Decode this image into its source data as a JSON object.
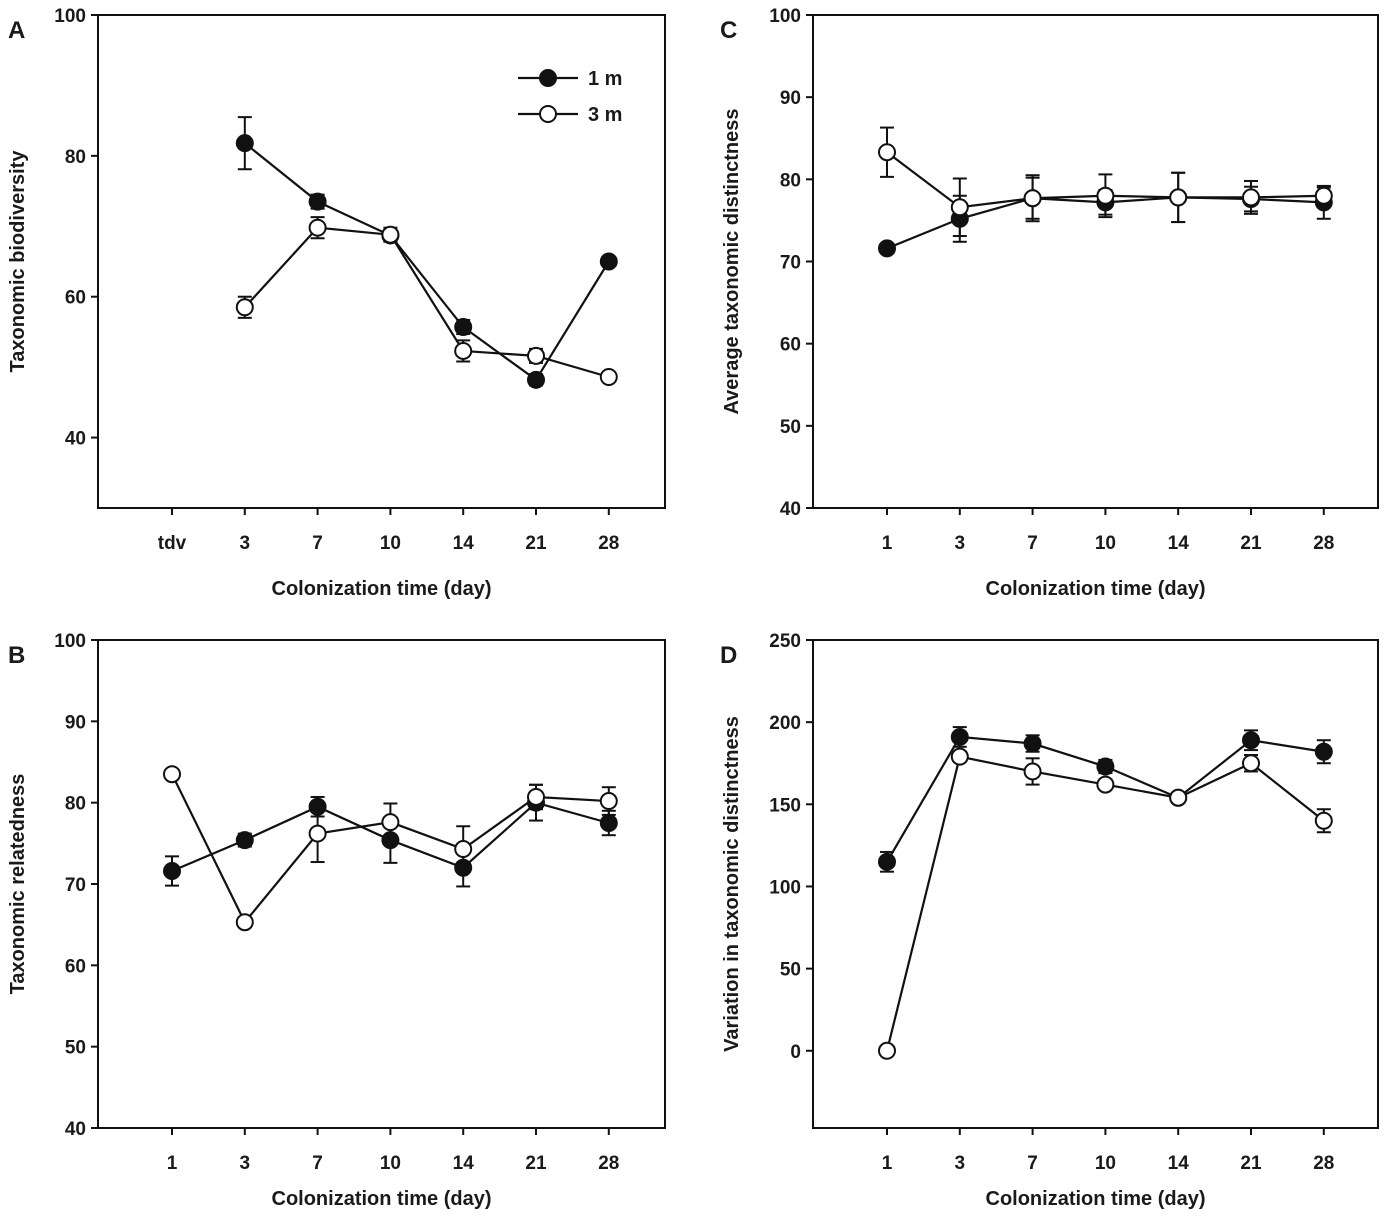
{
  "chart_data": [
    {
      "panel": "A",
      "type": "line",
      "xlabel": "Colonization time (day)",
      "ylabel": "Taxonomic biodiversity",
      "categories": [
        "tdv",
        "3",
        "7",
        "10",
        "14",
        "21",
        "28"
      ],
      "ylim": [
        30,
        100
      ],
      "yticks": [
        40,
        60,
        80,
        100
      ],
      "legend": {
        "placement": "top-right",
        "entries": [
          "1 m",
          "3 m"
        ]
      },
      "series": [
        {
          "name": "1 m",
          "marker": "filled-circle",
          "values": [
            null,
            81.8,
            73.5,
            68.7,
            55.7,
            48.2,
            65.0
          ],
          "errors": [
            null,
            3.7,
            1.0,
            0.8,
            1.0,
            0.8,
            0.6
          ]
        },
        {
          "name": "3 m",
          "marker": "open-circle",
          "values": [
            null,
            58.5,
            69.8,
            68.8,
            52.3,
            51.6,
            48.6
          ],
          "errors": [
            null,
            1.5,
            1.5,
            1.0,
            1.5,
            1.0,
            0.5
          ]
        }
      ]
    },
    {
      "panel": "B",
      "type": "line",
      "xlabel": "Colonization time (day)",
      "ylabel": "Taxonomic relatedness",
      "categories": [
        "1",
        "3",
        "7",
        "10",
        "14",
        "21",
        "28"
      ],
      "ylim": [
        40,
        100
      ],
      "yticks": [
        40,
        50,
        60,
        70,
        80,
        90,
        100
      ],
      "series": [
        {
          "name": "1 m",
          "marker": "filled-circle",
          "values": [
            71.6,
            75.4,
            79.5,
            75.4,
            72.0,
            80.0,
            77.5
          ],
          "errors": [
            1.8,
            0.8,
            1.2,
            2.8,
            2.3,
            2.2,
            1.5
          ]
        },
        {
          "name": "3 m",
          "marker": "open-circle",
          "values": [
            83.5,
            65.3,
            76.2,
            77.6,
            74.3,
            80.7,
            80.2
          ],
          "errors": [
            0.5,
            0.5,
            3.5,
            2.3,
            2.8,
            1.5,
            1.7
          ]
        }
      ]
    },
    {
      "panel": "C",
      "type": "line",
      "xlabel": "Colonization time (day)",
      "ylabel": "Average taxonomic distinctness",
      "categories": [
        "1",
        "3",
        "7",
        "10",
        "14",
        "21",
        "28"
      ],
      "ylim": [
        40,
        100
      ],
      "yticks": [
        40,
        50,
        60,
        70,
        80,
        90,
        100
      ],
      "series": [
        {
          "name": "1 m",
          "marker": "filled-circle",
          "values": [
            71.6,
            75.2,
            77.7,
            77.2,
            77.8,
            77.6,
            77.2
          ],
          "errors": [
            0.5,
            2.8,
            2.5,
            1.5,
            3.0,
            1.5,
            2.0
          ]
        },
        {
          "name": "3 m",
          "marker": "open-circle",
          "values": [
            83.3,
            76.6,
            77.7,
            78.0,
            77.8,
            77.8,
            78.0
          ],
          "errors": [
            3.0,
            3.5,
            2.8,
            2.6,
            3.0,
            2.0,
            1.0
          ]
        }
      ]
    },
    {
      "panel": "D",
      "type": "line",
      "xlabel": "Colonization time (day)",
      "ylabel": "Variation in taxonomic distinctness",
      "categories": [
        "1",
        "3",
        "7",
        "10",
        "14",
        "21",
        "28"
      ],
      "ylim": [
        -47,
        250
      ],
      "yticks": [
        0,
        50,
        100,
        150,
        200,
        250
      ],
      "series": [
        {
          "name": "1 m",
          "marker": "filled-circle",
          "values": [
            115,
            191,
            187,
            173,
            154,
            189,
            182
          ],
          "errors": [
            6,
            6,
            5,
            4,
            3,
            6,
            7
          ]
        },
        {
          "name": "3 m",
          "marker": "open-circle",
          "values": [
            0,
            179,
            170,
            162,
            154,
            175,
            140
          ],
          "errors": [
            1,
            3,
            8,
            3,
            3,
            5,
            7
          ]
        }
      ]
    }
  ]
}
